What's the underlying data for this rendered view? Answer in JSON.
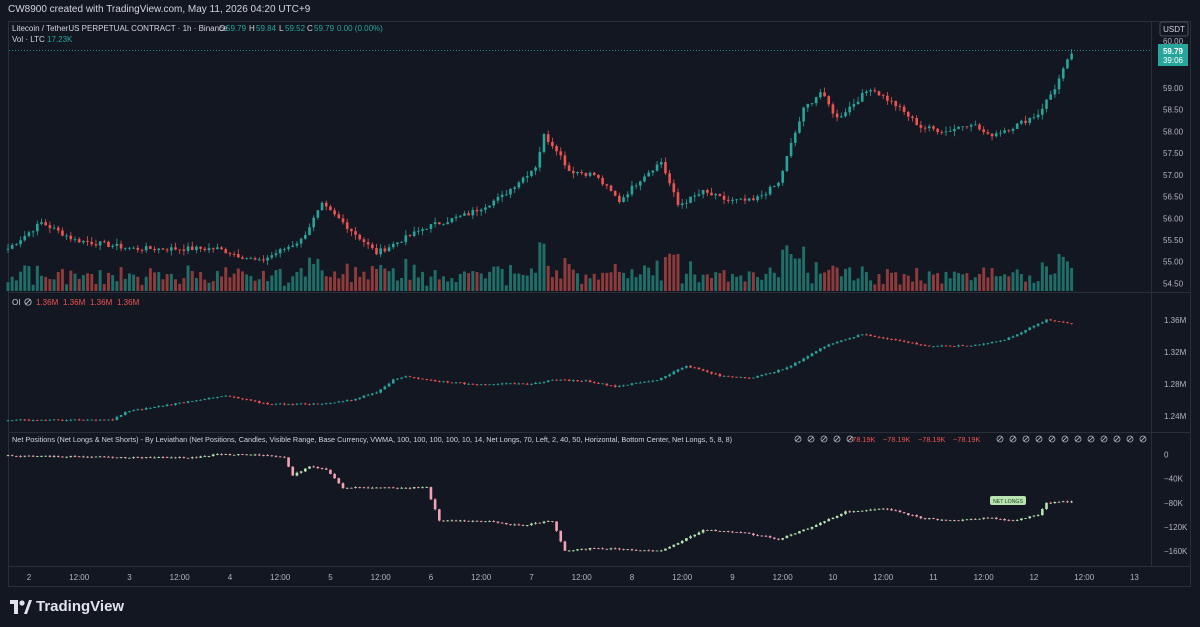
{
  "header": {
    "credit": "CW8900 created with TradingView.com, May 11, 2026 04:20 UTC+9"
  },
  "symbol": {
    "title": "Litecoin / TetherUS PERPETUAL CONTRACT · 1h · Binance",
    "o_label": "O",
    "o": "59.79",
    "h_label": "H",
    "h": "59.84",
    "l_label": "L",
    "l": "59.52",
    "c_label": "C",
    "c": "59.79",
    "change": "0.00 (0.00%)",
    "vol_label": "Vol · LTC",
    "vol": "17.23K"
  },
  "currency": "USDT",
  "last_price": {
    "price": "59.79",
    "countdown": "39:06",
    "top_level": "60.00"
  },
  "oi": {
    "label": "OI",
    "values": [
      "1.36M",
      "1.36M",
      "1.36M",
      "1.36M"
    ]
  },
  "net_positions": {
    "label": "Net Positions (Net Longs & Net Shorts) - By Leviathan (Net Positions, Candles, Visible Range, Base Currency, VWMA, 100, 100, 100, 100, 10, 14, Net Longs, 70, Left, 2, 40, 50, Horizontal, Bottom Center, Net Longs, 5, 8, 8)",
    "values": [
      "−78.19K",
      "−78.19K",
      "−78.19K",
      "−78.19K"
    ],
    "badge": "NET LONGS"
  },
  "colors": {
    "up": "#26a69a",
    "down": "#ef5350",
    "vol_up": "#1f6f69",
    "vol_down": "#8f3b3b",
    "net_up": "#b7e4b0",
    "net_down": "#f4a3b4",
    "bg": "#131722",
    "grid": "#1e222d"
  },
  "icons": {
    "eye_off": "eye-off-icon",
    "tv_logo": "tradingview-logo"
  },
  "footer": {
    "brand": "TradingView"
  },
  "chart_data": [
    {
      "type": "candlestick",
      "name": "price",
      "y_ticks": [
        "60.00",
        "59.00",
        "58.50",
        "58.00",
        "57.50",
        "57.00",
        "56.50",
        "56.00",
        "55.50",
        "55.00",
        "54.50"
      ],
      "ylim": [
        54.35,
        60.1
      ],
      "close_keypoints_by_hour": [
        [
          0,
          55.3
        ],
        [
          8,
          55.9
        ],
        [
          16,
          55.5
        ],
        [
          30,
          55.3
        ],
        [
          50,
          55.3
        ],
        [
          60,
          55.0
        ],
        [
          70,
          55.5
        ],
        [
          75,
          56.3
        ],
        [
          80,
          55.9
        ],
        [
          88,
          55.2
        ],
        [
          100,
          55.8
        ],
        [
          110,
          56.1
        ],
        [
          118,
          56.5
        ],
        [
          126,
          57.2
        ],
        [
          128,
          57.9
        ],
        [
          131,
          57.6
        ],
        [
          134,
          57.1
        ],
        [
          140,
          57.0
        ],
        [
          146,
          56.4
        ],
        [
          152,
          57.0
        ],
        [
          156,
          57.3
        ],
        [
          160,
          56.3
        ],
        [
          166,
          56.6
        ],
        [
          172,
          56.4
        ],
        [
          178,
          56.4
        ],
        [
          184,
          56.8
        ],
        [
          187,
          57.7
        ],
        [
          190,
          58.5
        ],
        [
          194,
          58.9
        ],
        [
          198,
          58.3
        ],
        [
          206,
          59.0
        ],
        [
          212,
          58.6
        ],
        [
          218,
          58.1
        ],
        [
          224,
          58.0
        ],
        [
          230,
          58.2
        ],
        [
          234,
          57.9
        ],
        [
          240,
          58.1
        ],
        [
          246,
          58.4
        ],
        [
          250,
          59.0
        ],
        [
          254,
          59.8
        ]
      ]
    },
    {
      "type": "bar",
      "name": "volume",
      "series_name": "Vol · LTC",
      "last_value": "17.23K"
    },
    {
      "type": "candlestick",
      "name": "open_interest",
      "y_ticks": [
        "1.36M",
        "1.32M",
        "1.28M",
        "1.24M"
      ],
      "ylim": [
        1.225,
        1.37
      ],
      "close_keypoints_by_hour": [
        [
          0,
          1.235
        ],
        [
          25,
          1.235
        ],
        [
          28,
          1.245
        ],
        [
          45,
          1.26
        ],
        [
          52,
          1.265
        ],
        [
          62,
          1.255
        ],
        [
          75,
          1.255
        ],
        [
          82,
          1.26
        ],
        [
          88,
          1.27
        ],
        [
          92,
          1.285
        ],
        [
          95,
          1.29
        ],
        [
          100,
          1.285
        ],
        [
          110,
          1.28
        ],
        [
          125,
          1.28
        ],
        [
          130,
          1.285
        ],
        [
          138,
          1.284
        ],
        [
          145,
          1.277
        ],
        [
          155,
          1.285
        ],
        [
          162,
          1.303
        ],
        [
          170,
          1.29
        ],
        [
          178,
          1.288
        ],
        [
          186,
          1.3
        ],
        [
          196,
          1.33
        ],
        [
          204,
          1.342
        ],
        [
          212,
          1.335
        ],
        [
          220,
          1.327
        ],
        [
          230,
          1.328
        ],
        [
          238,
          1.335
        ],
        [
          248,
          1.36
        ],
        [
          254,
          1.356
        ]
      ]
    },
    {
      "type": "candlestick",
      "name": "net_positions",
      "y_ticks": [
        "0",
        "−40K",
        "−80K",
        "−120K",
        "−160K"
      ],
      "ylim": [
        -178,
        14
      ],
      "close_keypoints_by_hour": [
        [
          0,
          -2
        ],
        [
          30,
          -5
        ],
        [
          45,
          -5
        ],
        [
          50,
          0
        ],
        [
          58,
          0
        ],
        [
          66,
          -5
        ],
        [
          68,
          -35
        ],
        [
          72,
          -20
        ],
        [
          76,
          -25
        ],
        [
          80,
          -55
        ],
        [
          94,
          -55
        ],
        [
          100,
          -55
        ],
        [
          103,
          -110
        ],
        [
          115,
          -110
        ],
        [
          122,
          -118
        ],
        [
          130,
          -110
        ],
        [
          133,
          -160
        ],
        [
          140,
          -155
        ],
        [
          156,
          -160
        ],
        [
          166,
          -125
        ],
        [
          176,
          -130
        ],
        [
          184,
          -140
        ],
        [
          192,
          -120
        ],
        [
          200,
          -95
        ],
        [
          210,
          -90
        ],
        [
          218,
          -105
        ],
        [
          226,
          -110
        ],
        [
          234,
          -105
        ],
        [
          240,
          -110
        ],
        [
          246,
          -100
        ],
        [
          248,
          -80
        ],
        [
          254,
          -78
        ]
      ]
    }
  ],
  "x_axis": {
    "labels": [
      {
        "label": "2",
        "hour": 5
      },
      {
        "label": "12:00",
        "hour": 17
      },
      {
        "label": "3",
        "hour": 29
      },
      {
        "label": "12:00",
        "hour": 41
      },
      {
        "label": "4",
        "hour": 53
      },
      {
        "label": "12:00",
        "hour": 65
      },
      {
        "label": "5",
        "hour": 77
      },
      {
        "label": "12:00",
        "hour": 89
      },
      {
        "label": "6",
        "hour": 101
      },
      {
        "label": "12:00",
        "hour": 113
      },
      {
        "label": "7",
        "hour": 125
      },
      {
        "label": "12:00",
        "hour": 137
      },
      {
        "label": "8",
        "hour": 149
      },
      {
        "label": "12:00",
        "hour": 161
      },
      {
        "label": "9",
        "hour": 173
      },
      {
        "label": "12:00",
        "hour": 185
      },
      {
        "label": "10",
        "hour": 197
      },
      {
        "label": "12:00",
        "hour": 209
      },
      {
        "label": "11",
        "hour": 221
      },
      {
        "label": "12:00",
        "hour": 233
      },
      {
        "label": "12",
        "hour": 245
      },
      {
        "label": "12:00",
        "hour": 257
      },
      {
        "label": "13",
        "hour": 269
      }
    ]
  }
}
